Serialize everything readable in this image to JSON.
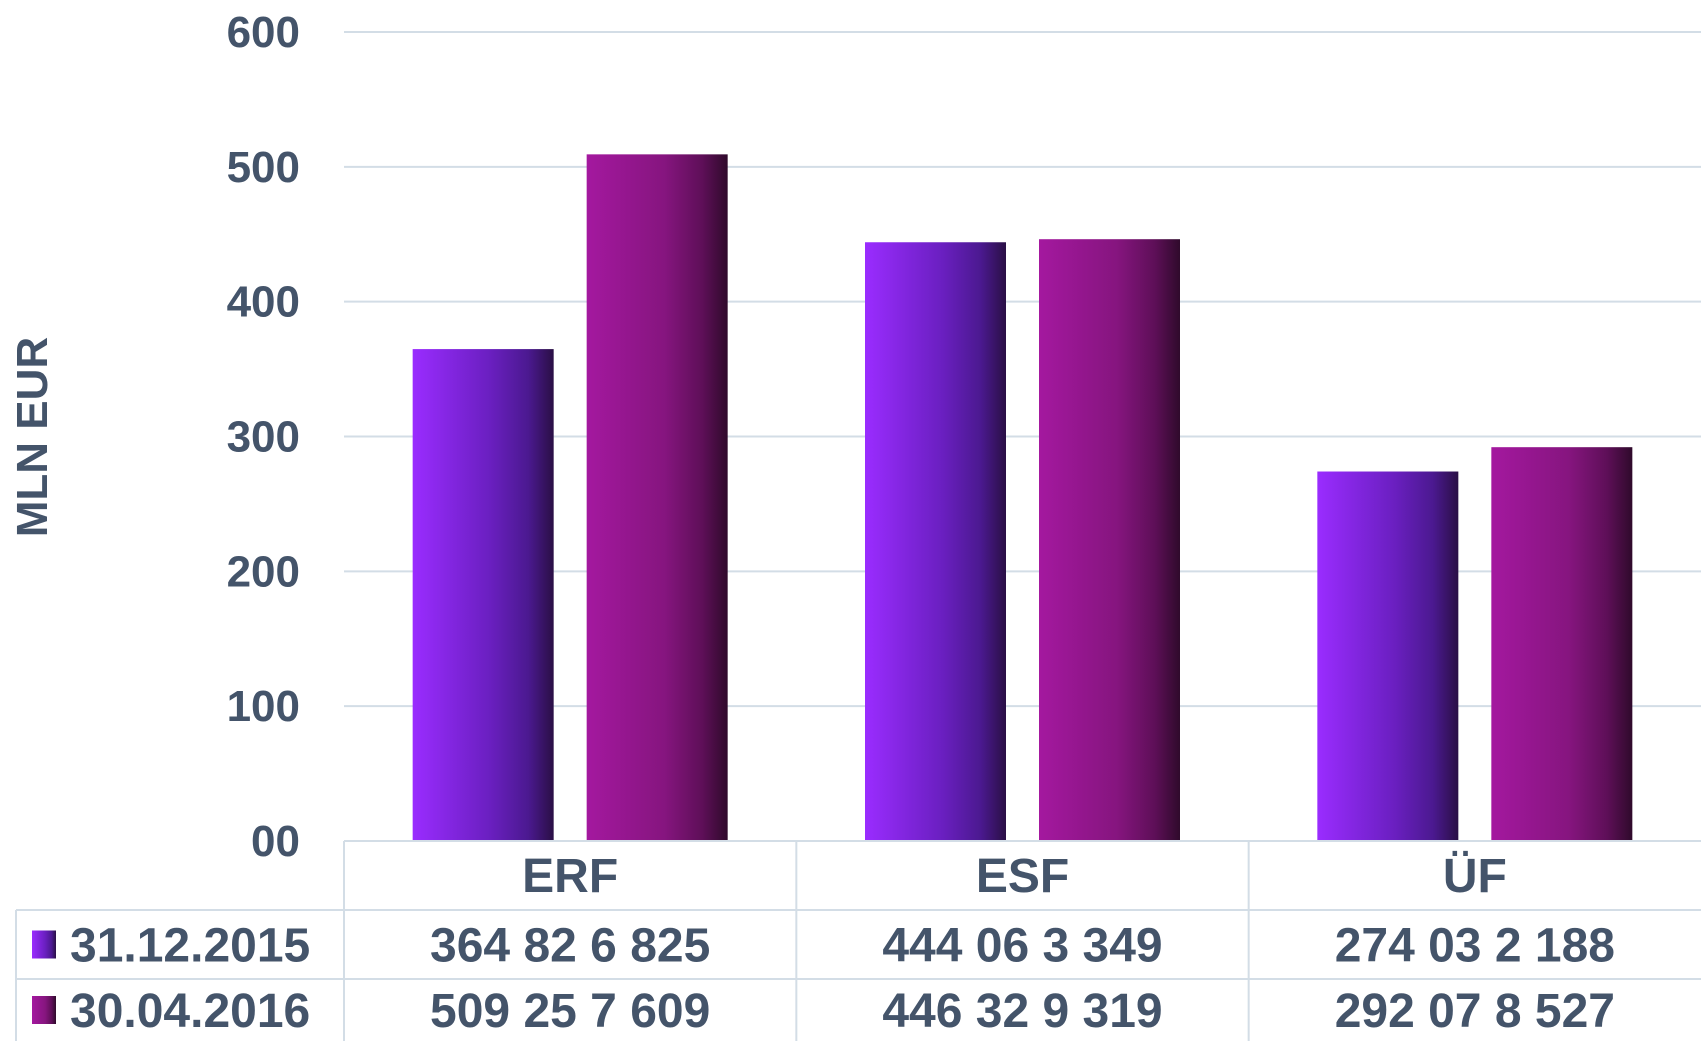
{
  "chart_data": {
    "type": "bar",
    "ylabel": "MLN EUR",
    "ylim": [
      0,
      600
    ],
    "yticks": [
      "00",
      "100",
      "200",
      "300",
      "400",
      "500",
      "600"
    ],
    "categories": [
      "ERF",
      "ESF",
      "ÜF"
    ],
    "grid": true,
    "legend": "data table below chart",
    "series": [
      {
        "name": "31.12.2015",
        "values": [
          364.826825,
          444.063349,
          274.032188
        ],
        "labels": [
          "364 82 6 825",
          "444 06 3 349",
          "274 03 2 188"
        ],
        "color_light": "#9a2cff",
        "color_dark": "#2a0f45"
      },
      {
        "name": "30.04.2016",
        "values": [
          509.257609,
          446.329319,
          292.078527
        ],
        "labels": [
          "509 25 7 609",
          "446 32 9 319",
          "292 07 8 527"
        ],
        "color_light": "#a4189f",
        "color_dark": "#2f0a2b"
      }
    ]
  }
}
